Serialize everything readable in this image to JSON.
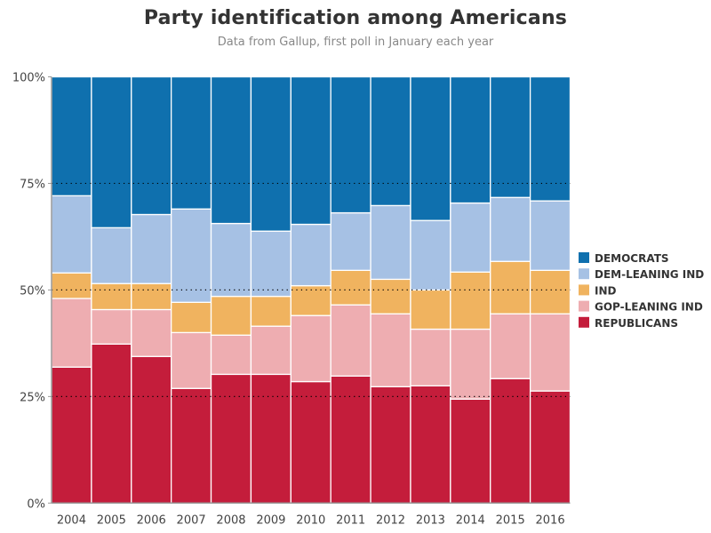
{
  "chart_data": {
    "type": "bar",
    "stacked": true,
    "normalized": true,
    "title": "Party identification among Americans",
    "subtitle": "Data from Gallup, first poll in January each year",
    "xlabel": "",
    "ylabel": "",
    "ylim": [
      0,
      100
    ],
    "yticks": [
      0,
      25,
      50,
      75,
      100
    ],
    "ytick_labels": [
      "0%",
      "25%",
      "50%",
      "75%",
      "100%"
    ],
    "gridlines": [
      25,
      50,
      75
    ],
    "grid_style": "dotted",
    "legend_position": "right",
    "categories": [
      "2004",
      "2005",
      "2006",
      "2007",
      "2008",
      "2009",
      "2010",
      "2011",
      "2012",
      "2013",
      "2014",
      "2015",
      "2016"
    ],
    "series": [
      {
        "name": "REPUBLICANS",
        "color": "#c41d3b",
        "values": [
          31.9,
          37.3,
          34.4,
          26.9,
          30.2,
          30.2,
          28.5,
          29.8,
          27.3,
          27.5,
          24.4,
          29.2,
          26.3
        ]
      },
      {
        "name": "GOP-LEANING IND",
        "color": "#eeadb1",
        "values": [
          16.1,
          8.1,
          11.0,
          13.1,
          9.2,
          11.3,
          15.5,
          16.7,
          17.1,
          13.3,
          16.4,
          15.2,
          18.1
        ]
      },
      {
        "name": "IND",
        "color": "#f0b35f",
        "values": [
          6.0,
          6.1,
          6.1,
          7.1,
          9.1,
          7.0,
          7.0,
          8.1,
          8.1,
          9.2,
          13.4,
          12.3,
          10.2
        ]
      },
      {
        "name": "DEM-LEANING IND",
        "color": "#a6c1e4",
        "values": [
          18.1,
          13.1,
          16.2,
          21.9,
          17.1,
          15.3,
          14.4,
          13.5,
          17.3,
          16.3,
          16.2,
          15.0,
          16.3
        ]
      },
      {
        "name": "DEMOCRATS",
        "color": "#0f70ae",
        "values": [
          27.9,
          35.4,
          32.3,
          31.0,
          34.4,
          36.2,
          34.6,
          31.9,
          30.2,
          33.7,
          29.6,
          28.3,
          29.1
        ]
      }
    ],
    "legend": [
      "DEMOCRATS",
      "DEM-LEANING IND",
      "IND",
      "GOP-LEANING IND",
      "REPUBLICANS"
    ]
  }
}
